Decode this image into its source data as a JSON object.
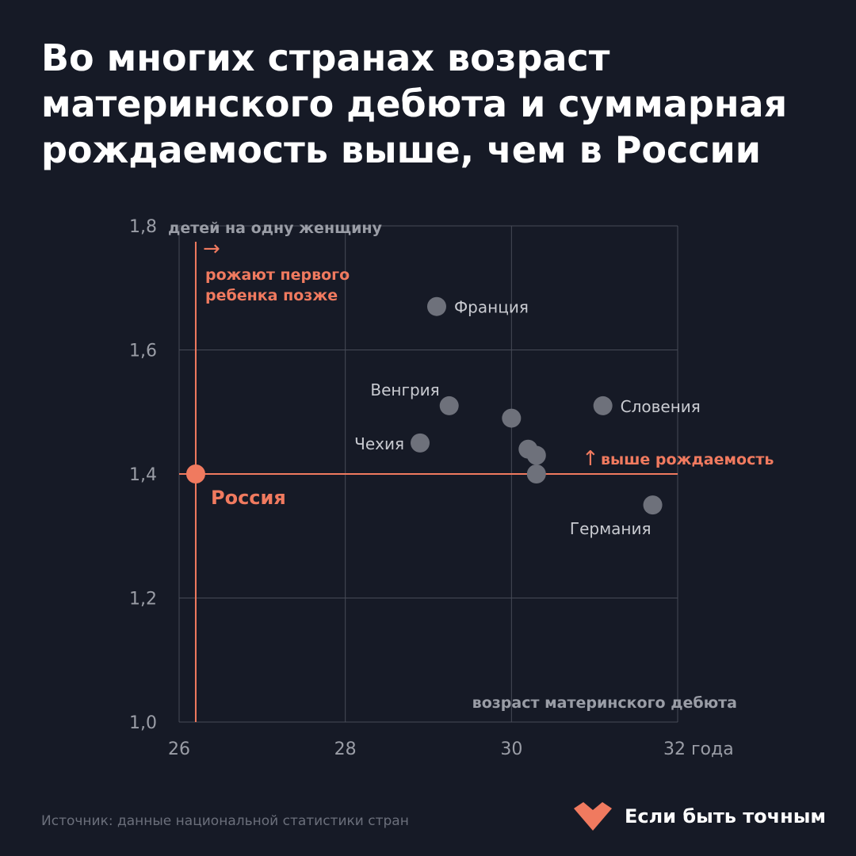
{
  "title": "Во многих странах возраст материнского дебюта и суммарная рождаемость выше, чем в России",
  "source": "Источник: данные национальной статистики стран",
  "brand": "Если быть точным",
  "colors": {
    "background": "#161a26",
    "accent": "#f07a5f",
    "point": "#6e717b",
    "text": "#ffffff",
    "muted": "#9a9da6",
    "grid": "#474b57"
  },
  "chart_data": {
    "type": "scatter",
    "xlabel": "возраст материнского дебюта",
    "ylabel": "детей на одну женщину",
    "xlim": [
      26,
      32
    ],
    "ylim": [
      1.0,
      1.8
    ],
    "x_ticks": [
      {
        "value": 26,
        "label": "26"
      },
      {
        "value": 28,
        "label": "28"
      },
      {
        "value": 30,
        "label": "30"
      },
      {
        "value": 32,
        "label": "32 года"
      }
    ],
    "y_ticks": [
      {
        "value": 1.0,
        "label": "1,0"
      },
      {
        "value": 1.2,
        "label": "1,2"
      },
      {
        "value": 1.4,
        "label": "1,4"
      },
      {
        "value": 1.6,
        "label": "1,6"
      },
      {
        "value": 1.8,
        "label": "1,8"
      }
    ],
    "grid": true,
    "points": [
      {
        "label": "Франция",
        "x": 29.1,
        "y": 1.67,
        "label_pos": "right"
      },
      {
        "label": "Венгрия",
        "x": 29.25,
        "y": 1.51,
        "label_pos": "above-left"
      },
      {
        "label": "",
        "x": 30.0,
        "y": 1.49
      },
      {
        "label": "Словения",
        "x": 31.1,
        "y": 1.51,
        "label_pos": "right"
      },
      {
        "label": "Чехия",
        "x": 28.9,
        "y": 1.45,
        "label_pos": "left"
      },
      {
        "label": "",
        "x": 30.2,
        "y": 1.44
      },
      {
        "label": "",
        "x": 30.3,
        "y": 1.43
      },
      {
        "label": "",
        "x": 30.3,
        "y": 1.4
      },
      {
        "label": "Германия",
        "x": 31.7,
        "y": 1.35,
        "label_pos": "below-left"
      }
    ],
    "highlight": {
      "label": "Россия",
      "x": 26.2,
      "y": 1.4
    },
    "annotations": {
      "right_arrow": "→",
      "later_first_child": [
        "рожают первого",
        "ребенка позже"
      ],
      "up_arrow": "↑",
      "higher_fertility": "выше рождаемость"
    }
  }
}
